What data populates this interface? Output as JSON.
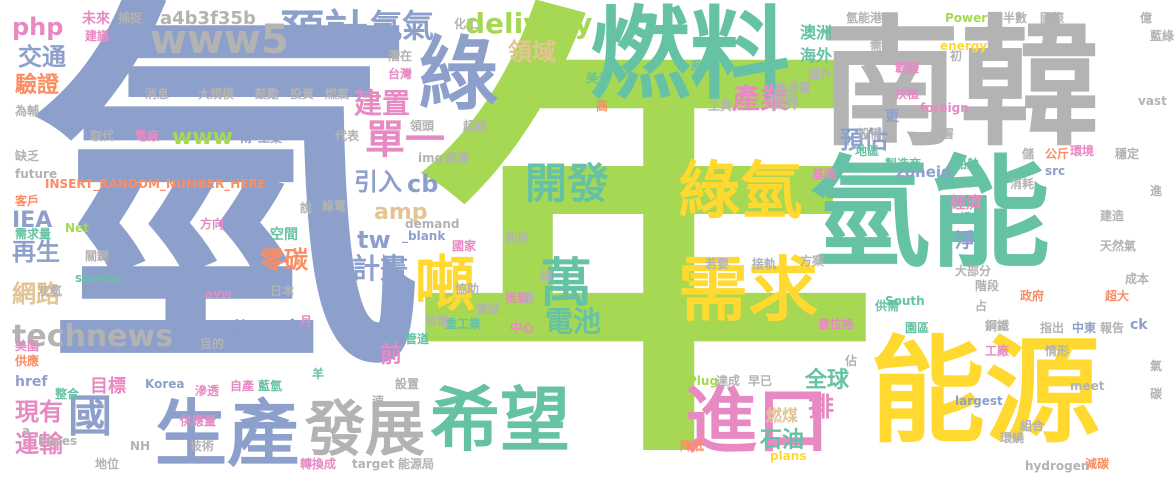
{
  "palette": {
    "green": "#a6d854",
    "teal": "#66c2a5",
    "blue": "#8da0cb",
    "orange": "#fc8d62",
    "yellow": "#ffd92f",
    "gray": "#b3b3b3",
    "pink": "#e78ac3",
    "tan": "#e5c494"
  },
  "words": [
    {
      "text": "年",
      "color": "green"
    },
    {
      "text": "氫",
      "color": "blue"
    },
    {
      "text": "南韓",
      "color": "gray"
    },
    {
      "text": "燃料",
      "color": "teal"
    },
    {
      "text": "氫能",
      "color": "teal"
    },
    {
      "text": "能源",
      "color": "yellow"
    },
    {
      "text": "希望",
      "color": "teal"
    },
    {
      "text": "綠",
      "color": "blue"
    },
    {
      "text": "生產",
      "color": "blue"
    },
    {
      "text": "進口",
      "color": "pink"
    },
    {
      "text": "發展",
      "color": "gray"
    },
    {
      "text": "需求",
      "color": "yellow"
    },
    {
      "text": "綠氫",
      "color": "yellow"
    },
    {
      "text": "噸",
      "color": "yellow"
    },
    {
      "text": "開發",
      "color": "teal"
    },
    {
      "text": "萬",
      "color": "teal"
    },
    {
      "text": "預計",
      "color": "blue"
    },
    {
      "text": "www5",
      "color": "gray"
    },
    {
      "text": "氫氣",
      "color": "blue"
    },
    {
      "text": "單一",
      "color": "pink"
    },
    {
      "text": "國",
      "color": "blue"
    },
    {
      "text": "technews",
      "color": "gray"
    },
    {
      "text": "delivery",
      "color": "green"
    },
    {
      "text": "產業",
      "color": "pink"
    },
    {
      "text": "計畫",
      "color": "blue"
    },
    {
      "text": "電池",
      "color": "teal"
    },
    {
      "text": "建置",
      "color": "pink"
    },
    {
      "text": "發電廠",
      "color": "blue"
    },
    {
      "text": "零碳",
      "color": "orange"
    },
    {
      "text": "引入",
      "color": "blue"
    },
    {
      "text": "cb",
      "color": "blue"
    },
    {
      "text": "amp",
      "color": "tan"
    },
    {
      "text": "tw",
      "color": "blue"
    },
    {
      "text": "預估",
      "color": "blue"
    },
    {
      "text": "領域",
      "color": "tan"
    },
    {
      "text": "現有",
      "color": "pink"
    },
    {
      "text": "運輸",
      "color": "pink"
    },
    {
      "text": "再生",
      "color": "blue"
    },
    {
      "text": "網路",
      "color": "tan"
    },
    {
      "text": "交通",
      "color": "blue"
    },
    {
      "text": "驗證",
      "color": "orange"
    },
    {
      "text": "php",
      "color": "pink"
    },
    {
      "text": "IEA",
      "color": "blue"
    },
    {
      "text": "www",
      "color": "green"
    },
    {
      "text": "全球",
      "color": "teal"
    },
    {
      "text": "石油",
      "color": "teal"
    },
    {
      "text": "排",
      "color": "pink"
    },
    {
      "text": "燃煤",
      "color": "tan"
    },
    {
      "text": "前",
      "color": "pink"
    },
    {
      "text": "a4b3f35b",
      "color": "gray"
    },
    {
      "text": "目標",
      "color": "pink"
    },
    {
      "text": "zoneid",
      "color": "blue"
    },
    {
      "text": "淨",
      "color": "blue"
    },
    {
      "text": "經濟",
      "color": "pink"
    },
    {
      "text": "世界",
      "color": "gray"
    },
    {
      "text": "海外",
      "color": "teal"
    },
    {
      "text": "澳洲",
      "color": "teal"
    },
    {
      "text": "國家",
      "color": "pink"
    },
    {
      "text": "未來",
      "color": "pink"
    },
    {
      "text": "捕捉",
      "color": "gray"
    },
    {
      "text": "化工",
      "color": "gray"
    },
    {
      "text": "氫能港",
      "color": "gray"
    },
    {
      "text": "Power",
      "color": "green"
    },
    {
      "text": "半數",
      "color": "gray"
    },
    {
      "text": "國際",
      "color": "gray"
    },
    {
      "text": "藍綠",
      "color": "gray"
    },
    {
      "text": "INSERT_RANDOM_NUMBER_HERE",
      "color": "orange"
    },
    {
      "text": "href",
      "color": "blue"
    },
    {
      "text": "供應",
      "color": "orange"
    },
    {
      "text": "美國",
      "color": "pink"
    },
    {
      "text": "取代",
      "color": "gray"
    },
    {
      "text": "電廠",
      "color": "pink"
    },
    {
      "text": "兩",
      "color": "blue"
    },
    {
      "text": "工業",
      "color": "blue"
    },
    {
      "text": "n",
      "color": "blue"
    },
    {
      "text": "代表",
      "color": "gray"
    },
    {
      "text": "領頭",
      "color": "gray"
    },
    {
      "text": "超級",
      "color": "gray"
    },
    {
      "text": "img",
      "color": "gray"
    },
    {
      "text": "報導",
      "color": "gray"
    },
    {
      "text": "消息",
      "color": "gray"
    },
    {
      "text": "大規模",
      "color": "gray"
    },
    {
      "text": "鼓勵",
      "color": "gray"
    },
    {
      "text": "投資",
      "color": "gray"
    },
    {
      "text": "燃氣",
      "color": "gray"
    },
    {
      "text": "潛在",
      "color": "gray"
    },
    {
      "text": "台灣",
      "color": "pink"
    },
    {
      "text": "美元",
      "color": "teal"
    },
    {
      "text": "系統",
      "color": "teal"
    },
    {
      "text": "能源署",
      "color": "gray"
    },
    {
      "text": "國外",
      "color": "gray"
    },
    {
      "text": "扶植",
      "color": "pink"
    },
    {
      "text": "載體",
      "color": "pink"
    },
    {
      "text": "初",
      "color": "gray"
    },
    {
      "text": "更",
      "color": "blue"
    },
    {
      "text": "部署",
      "color": "gray"
    },
    {
      "text": "設備",
      "color": "gray"
    },
    {
      "text": "地區",
      "color": "teal"
    },
    {
      "text": "製造商",
      "color": "teal"
    },
    {
      "text": "船舶",
      "color": "teal"
    },
    {
      "text": "環境",
      "color": "pink"
    },
    {
      "text": "穩定",
      "color": "gray"
    },
    {
      "text": "公斤",
      "color": "orange"
    },
    {
      "text": "src",
      "color": "blue"
    },
    {
      "text": "消耗",
      "color": "gray"
    },
    {
      "text": "基礎",
      "color": "pink"
    },
    {
      "text": "進",
      "color": "gray"
    },
    {
      "text": "建造",
      "color": "gray"
    },
    {
      "text": "天然氣",
      "color": "gray"
    },
    {
      "text": "證實",
      "color": "teal"
    },
    {
      "text": "大部分",
      "color": "gray"
    },
    {
      "text": "成本",
      "color": "gray"
    },
    {
      "text": "政府",
      "color": "orange"
    },
    {
      "text": "超大",
      "color": "orange"
    },
    {
      "text": "階段",
      "color": "gray"
    },
    {
      "text": "鋼鐵",
      "color": "gray"
    },
    {
      "text": "普拉格",
      "color": "pink"
    },
    {
      "text": "供需",
      "color": "teal"
    },
    {
      "text": "園區",
      "color": "teal"
    },
    {
      "text": "指出",
      "color": "gray"
    },
    {
      "text": "中東",
      "color": "blue"
    },
    {
      "text": "報告",
      "color": "gray"
    },
    {
      "text": "ck",
      "color": "blue"
    },
    {
      "text": "工廠",
      "color": "pink"
    },
    {
      "text": "情形",
      "color": "gray"
    },
    {
      "text": "組合",
      "color": "gray"
    },
    {
      "text": "環繞",
      "color": "gray"
    },
    {
      "text": "Plug",
      "color": "green"
    },
    {
      "text": "達成",
      "color": "gray"
    },
    {
      "text": "早已",
      "color": "gray"
    },
    {
      "text": "降低",
      "color": "orange"
    },
    {
      "text": "減碳",
      "color": "orange"
    },
    {
      "text": "hydrogen",
      "color": "gray"
    },
    {
      "text": "largest",
      "color": "blue"
    },
    {
      "text": "meet",
      "color": "gray"
    },
    {
      "text": "碳",
      "color": "gray"
    },
    {
      "text": "氣",
      "color": "gray"
    },
    {
      "text": "轉換成",
      "color": "pink"
    },
    {
      "text": "target",
      "color": "gray"
    },
    {
      "text": "能源局",
      "color": "gray"
    },
    {
      "text": "地位",
      "color": "gray"
    },
    {
      "text": "技術",
      "color": "gray"
    },
    {
      "text": "供應量",
      "color": "pink"
    },
    {
      "text": "滲透",
      "color": "pink"
    },
    {
      "text": "自產",
      "color": "pink"
    },
    {
      "text": "藍氫",
      "color": "teal"
    },
    {
      "text": "設置",
      "color": "gray"
    },
    {
      "text": "管道",
      "color": "teal"
    },
    {
      "text": "重工業",
      "color": "teal"
    },
    {
      "text": "嘗試",
      "color": "gray"
    },
    {
      "text": "中心",
      "color": "pink"
    },
    {
      "text": "推廣",
      "color": "pink"
    },
    {
      "text": "接軌",
      "color": "gray"
    },
    {
      "text": "方案",
      "color": "gray"
    },
    {
      "text": "若要",
      "color": "gray"
    },
    {
      "text": "協助",
      "color": "gray"
    },
    {
      "text": "發電",
      "color": "gray"
    },
    {
      "text": "空間",
      "color": "teal"
    },
    {
      "text": "日本",
      "color": "gray"
    },
    {
      "text": "方向",
      "color": "pink"
    },
    {
      "text": "利用",
      "color": "gray"
    },
    {
      "text": "灰氫",
      "color": "gray"
    },
    {
      "text": "關鍵",
      "color": "gray"
    },
    {
      "text": "需求量",
      "color": "teal"
    },
    {
      "text": "source",
      "color": "teal"
    },
    {
      "text": "Net",
      "color": "green"
    },
    {
      "text": "客戶",
      "color": "orange"
    },
    {
      "text": "future",
      "color": "gray"
    },
    {
      "text": "缺乏",
      "color": "gray"
    },
    {
      "text": "為輔",
      "color": "gray"
    },
    {
      "text": "建議",
      "color": "pink"
    },
    {
      "text": "bases",
      "color": "gray"
    },
    {
      "text": "NH",
      "color": "gray"
    },
    {
      "text": "Korea",
      "color": "blue"
    },
    {
      "text": "整合",
      "color": "teal"
    },
    {
      "text": "_blank",
      "color": "blue"
    },
    {
      "text": "avw",
      "color": "pink"
    },
    {
      "text": "South",
      "color": "teal"
    },
    {
      "text": "foreign",
      "color": "pink"
    },
    {
      "text": "energy",
      "color": "yellow"
    },
    {
      "text": "vast",
      "color": "gray"
    },
    {
      "text": "plans",
      "color": "yellow"
    },
    {
      "text": "demand",
      "color": "gray"
    },
    {
      "text": "綠電",
      "color": "gray"
    },
    {
      "text": "工具",
      "color": "gray"
    },
    {
      "text": "說",
      "color": "gray"
    },
    {
      "text": "羊",
      "color": "teal"
    },
    {
      "text": "月",
      "color": "pink"
    },
    {
      "text": "目的",
      "color": "gray"
    },
    {
      "text": "佔",
      "color": "gray"
    },
    {
      "text": "占",
      "color": "gray"
    },
    {
      "text": "儲",
      "color": "gray"
    },
    {
      "text": "總",
      "color": "gray"
    },
    {
      "text": "視",
      "color": "gray"
    },
    {
      "text": "高",
      "color": "orange"
    },
    {
      "text": "需",
      "color": "gray"
    },
    {
      "text": "億",
      "color": "gray"
    },
    {
      "text": "速",
      "color": "gray"
    },
    {
      "text": "a",
      "color": "gray"
    }
  ]
}
